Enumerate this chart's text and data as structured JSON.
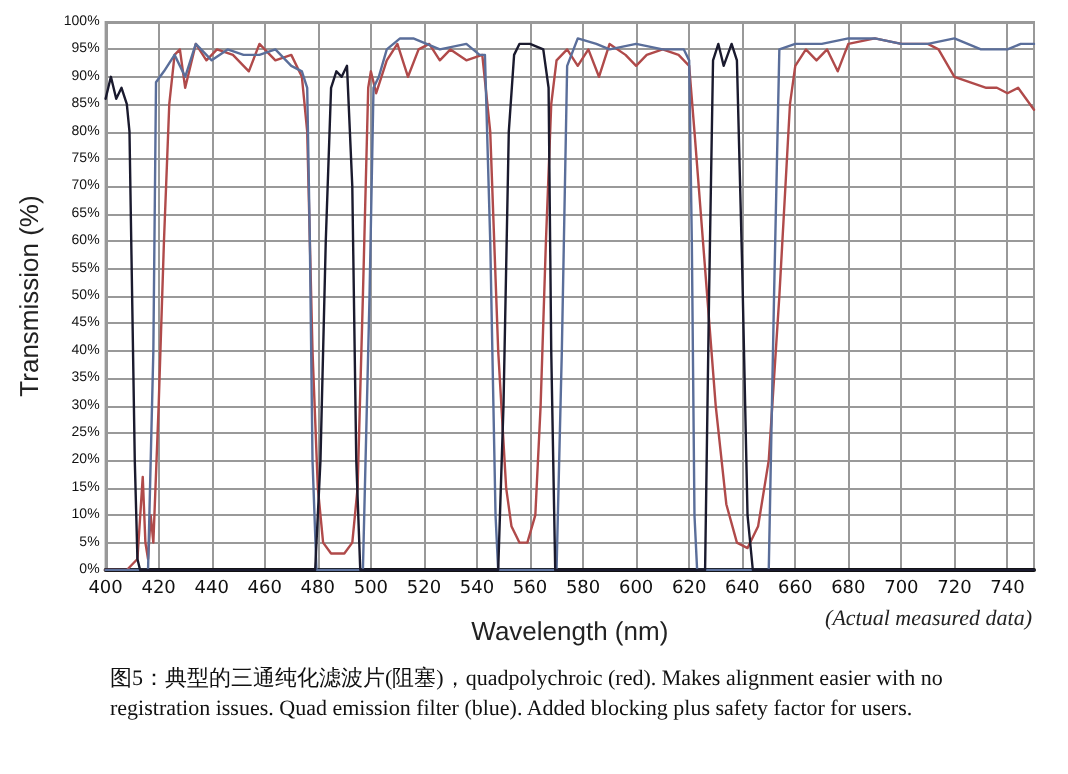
{
  "chart_data": {
    "type": "line",
    "xlabel": "Wavelength (nm)",
    "ylabel": "Transmission (%)",
    "xlim": [
      400,
      750
    ],
    "ylim": [
      0,
      100
    ],
    "xticks": [
      400,
      420,
      440,
      460,
      480,
      500,
      520,
      540,
      560,
      580,
      600,
      620,
      640,
      660,
      680,
      700,
      720,
      740
    ],
    "yticks": [
      {
        "value": 0,
        "label": "0%"
      },
      {
        "value": 5,
        "label": "5%"
      },
      {
        "value": 10,
        "label": "10%"
      },
      {
        "value": 15,
        "label": "15%"
      },
      {
        "value": 20,
        "label": "20%"
      },
      {
        "value": 25,
        "label": "25%"
      },
      {
        "value": 30,
        "label": "30%"
      },
      {
        "value": 35,
        "label": "35%"
      },
      {
        "value": 40,
        "label": "40%"
      },
      {
        "value": 45,
        "label": "45%"
      },
      {
        "value": 50,
        "label": "50%"
      },
      {
        "value": 55,
        "label": "55%"
      },
      {
        "value": 60,
        "label": "60%"
      },
      {
        "value": 65,
        "label": "65%"
      },
      {
        "value": 70,
        "label": "70%"
      },
      {
        "value": 75,
        "label": "75%"
      },
      {
        "value": 80,
        "label": "80%"
      },
      {
        "value": 85,
        "label": "85%"
      },
      {
        "value": 90,
        "label": "90%"
      },
      {
        "value": 95,
        "label": "95%"
      },
      {
        "value": 100,
        "label": "100%"
      }
    ],
    "grid": true,
    "marker": "none",
    "line_style": "solid",
    "annotations": [
      "(Actual measured data)",
      "图5：典型的三通纯化滤波片(阻塞)，quadpolychroic (red). Makes alignment easier with no registration issues. Quad emission filter (blue). Added blocking plus safety factor for users."
    ],
    "series": [
      {
        "color": "#b04a4a",
        "x": [
          400,
          408,
          410,
          412,
          414,
          415,
          416,
          417,
          418,
          420,
          422,
          424,
          426,
          428,
          430,
          434,
          438,
          442,
          448,
          454,
          458,
          464,
          470,
          474,
          476,
          478,
          480,
          482,
          485,
          490,
          493,
          495,
          497,
          499,
          500,
          502,
          506,
          510,
          514,
          518,
          522,
          526,
          530,
          536,
          542,
          545,
          548,
          551,
          553,
          556,
          559,
          562,
          564,
          566,
          568,
          570,
          574,
          578,
          582,
          586,
          590,
          596,
          600,
          604,
          610,
          616,
          620,
          622,
          626,
          630,
          634,
          638,
          642,
          646,
          650,
          654,
          658,
          660,
          664,
          668,
          672,
          676,
          680,
          690,
          700,
          710,
          714,
          720,
          726,
          732,
          736,
          740,
          744,
          750
        ],
        "values": [
          0,
          0,
          1,
          2,
          17,
          5,
          2,
          10,
          5,
          30,
          60,
          85,
          94,
          95,
          88,
          96,
          93,
          95,
          94,
          91,
          96,
          93,
          94,
          90,
          80,
          40,
          15,
          5,
          3,
          3,
          5,
          15,
          50,
          88,
          91,
          87,
          93,
          96,
          90,
          95,
          96,
          93,
          95,
          93,
          94,
          80,
          40,
          15,
          8,
          5,
          5,
          10,
          30,
          60,
          85,
          93,
          95,
          92,
          95,
          90,
          96,
          94,
          92,
          94,
          95,
          94,
          92,
          80,
          55,
          30,
          12,
          5,
          4,
          8,
          20,
          50,
          85,
          92,
          95,
          93,
          95,
          91,
          96,
          97,
          96,
          96,
          95,
          90,
          89,
          88,
          88,
          87,
          88,
          84
        ]
      },
      {
        "color": "#5a6e9a",
        "x": [
          400,
          416,
          418,
          419,
          422,
          426,
          430,
          434,
          440,
          446,
          452,
          458,
          464,
          470,
          474,
          476,
          477,
          478,
          479.5,
          497,
          499.5,
          501,
          503,
          506,
          511,
          516,
          521,
          526,
          536,
          541,
          543,
          545,
          547,
          548,
          570,
          572,
          574,
          578,
          585,
          590,
          600,
          610,
          618,
          620,
          621,
          622,
          623,
          650,
          652,
          654,
          660,
          670,
          680,
          690,
          700,
          710,
          720,
          730,
          740,
          745,
          750
        ],
        "values": [
          0,
          0,
          40,
          89,
          91,
          94,
          90,
          96,
          93,
          95,
          94,
          94,
          95,
          92,
          91,
          88,
          60,
          20,
          0,
          0,
          50,
          88,
          90,
          95,
          97,
          97,
          96,
          95,
          96,
          94,
          94,
          60,
          10,
          0,
          0,
          40,
          92,
          97,
          96,
          95,
          96,
          95,
          95,
          93,
          60,
          10,
          0,
          0,
          50,
          95,
          96,
          96,
          97,
          97,
          96,
          96,
          97,
          95,
          95,
          96,
          96
        ]
      },
      {
        "color": "#1a1a2e",
        "x": [
          400,
          402,
          404,
          406,
          408,
          409,
          410,
          411,
          412,
          413,
          479,
          481,
          483,
          485,
          487,
          489,
          491,
          493,
          494.5,
          496,
          548,
          550,
          552,
          554,
          556,
          560,
          565,
          567,
          568,
          569.5,
          626,
          627.5,
          629,
          631,
          633,
          636,
          638,
          640,
          642,
          644,
          750
        ],
        "values": [
          86,
          90,
          86,
          88,
          85,
          80,
          50,
          20,
          2,
          0,
          0,
          20,
          60,
          88,
          91,
          90,
          92,
          70,
          20,
          0,
          0,
          30,
          80,
          94,
          96,
          96,
          95,
          88,
          40,
          0,
          0,
          50,
          93,
          96,
          92,
          96,
          93,
          55,
          10,
          0,
          0
        ]
      }
    ]
  }
}
